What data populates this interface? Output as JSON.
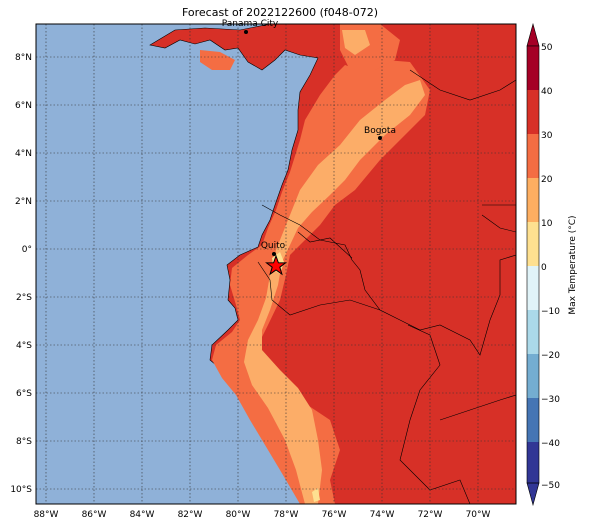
{
  "title": "Forecast of 2022122600 (f048-072)",
  "map": {
    "lon_ticks": [
      "88°W",
      "86°W",
      "84°W",
      "82°W",
      "80°W",
      "78°W",
      "76°W",
      "74°W",
      "72°W",
      "70°W"
    ],
    "lat_ticks": [
      "8°N",
      "6°N",
      "4°N",
      "2°N",
      "0°",
      "2°S",
      "4°S",
      "6°S",
      "8°S",
      "10°S"
    ],
    "cities": [
      {
        "name": "Panama City"
      },
      {
        "name": "Bogota"
      },
      {
        "name": "Quito"
      }
    ],
    "marker": "star",
    "colors": {
      "ocean": "#8fb1d8",
      "c10_20": "#fcad68",
      "c20_30": "#f46d43",
      "c30_40": "#d73027",
      "c0_10": "#fee090"
    }
  },
  "colorbar": {
    "label": "Max Temperature (°C)",
    "ticks": [
      "50",
      "40",
      "30",
      "20",
      "10",
      "0",
      "−10",
      "−20",
      "−30",
      "−40",
      "−50"
    ],
    "colors": [
      "#a50026",
      "#d73027",
      "#f46d43",
      "#fdae61",
      "#fee090",
      "#ffffbf",
      "#e0f3f8",
      "#abd9e9",
      "#74add1",
      "#4575b4",
      "#313695"
    ]
  }
}
